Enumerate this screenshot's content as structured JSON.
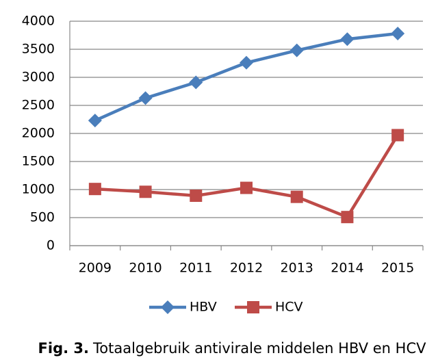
{
  "chart_data": {
    "type": "line",
    "categories": [
      "2009",
      "2010",
      "2011",
      "2012",
      "2013",
      "2014",
      "2015"
    ],
    "series": [
      {
        "name": "HBV",
        "color": "#4a7ebb",
        "marker": "diamond",
        "values": [
          2230,
          2630,
          2910,
          3260,
          3480,
          3680,
          3780
        ]
      },
      {
        "name": "HCV",
        "color": "#be4b48",
        "marker": "square",
        "values": [
          1010,
          960,
          890,
          1030,
          870,
          510,
          1970
        ]
      }
    ],
    "ylim": [
      0,
      4000
    ],
    "yticks": [
      0,
      500,
      1000,
      1500,
      2000,
      2500,
      3000,
      3500,
      4000
    ],
    "grid": true,
    "legend": "bottom",
    "caption_label": "Fig. 3.",
    "caption": "Totaalgebruik antivirale middelen HBV en HCV"
  }
}
